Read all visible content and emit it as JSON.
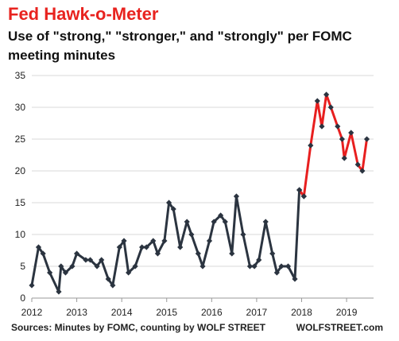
{
  "chart_data": {
    "type": "line",
    "title": "Fed Hawk-o-Meter",
    "subtitle": "Use of \"strong,\" \"stronger,\" and \"strongly\" per FOMC meeting minutes",
    "xlabel": "",
    "ylabel": "",
    "xlim": [
      2012,
      2019.6
    ],
    "ylim": [
      0,
      35
    ],
    "yticks": [
      0,
      5,
      10,
      15,
      20,
      25,
      30,
      35
    ],
    "xticks": [
      2012,
      2013,
      2014,
      2015,
      2016,
      2017,
      2018,
      2019
    ],
    "grid": "horizontal",
    "legend": "none",
    "series": [
      {
        "color": "#2b3440",
        "points": [
          [
            2012.0,
            2
          ],
          [
            2012.15,
            8
          ],
          [
            2012.25,
            7
          ],
          [
            2012.4,
            4
          ],
          [
            2012.6,
            1
          ],
          [
            2012.65,
            5
          ],
          [
            2012.75,
            4
          ],
          [
            2012.9,
            5
          ],
          [
            2013.0,
            7
          ],
          [
            2013.2,
            6
          ],
          [
            2013.3,
            6
          ],
          [
            2013.45,
            5
          ],
          [
            2013.55,
            6
          ],
          [
            2013.7,
            3
          ],
          [
            2013.8,
            2
          ],
          [
            2013.95,
            8
          ],
          [
            2014.05,
            9
          ],
          [
            2014.15,
            4
          ],
          [
            2014.3,
            5
          ],
          [
            2014.45,
            8
          ],
          [
            2014.55,
            8
          ],
          [
            2014.7,
            9
          ],
          [
            2014.8,
            7
          ],
          [
            2014.95,
            9
          ],
          [
            2015.05,
            15
          ],
          [
            2015.15,
            14
          ],
          [
            2015.3,
            8
          ],
          [
            2015.45,
            12
          ],
          [
            2015.55,
            10
          ],
          [
            2015.7,
            7
          ],
          [
            2015.8,
            5
          ],
          [
            2015.95,
            9
          ],
          [
            2016.05,
            12
          ],
          [
            2016.2,
            13
          ],
          [
            2016.3,
            12
          ],
          [
            2016.45,
            7
          ],
          [
            2016.55,
            16
          ],
          [
            2016.7,
            10
          ],
          [
            2016.85,
            5
          ],
          [
            2016.95,
            5
          ],
          [
            2017.05,
            6
          ],
          [
            2017.2,
            12
          ],
          [
            2017.35,
            7
          ],
          [
            2017.45,
            4
          ],
          [
            2017.55,
            5
          ],
          [
            2017.7,
            5
          ],
          [
            2017.85,
            3
          ],
          [
            2017.95,
            17
          ],
          [
            2018.05,
            16
          ]
        ]
      },
      {
        "color": "#e81f1f",
        "points": [
          [
            2017.95,
            17
          ],
          [
            2018.05,
            16
          ],
          [
            2018.2,
            24
          ],
          [
            2018.35,
            31
          ],
          [
            2018.45,
            27
          ],
          [
            2018.55,
            32
          ],
          [
            2018.65,
            30
          ],
          [
            2018.8,
            27
          ],
          [
            2018.9,
            25
          ],
          [
            2018.95,
            22
          ],
          [
            2019.1,
            26
          ],
          [
            2019.25,
            21
          ],
          [
            2019.35,
            20
          ],
          [
            2019.45,
            25
          ]
        ]
      }
    ]
  },
  "footer": {
    "source": "Sources: Minutes by FOMC, counting by WOLF STREET",
    "brand": "WOLFSTREET.com"
  }
}
